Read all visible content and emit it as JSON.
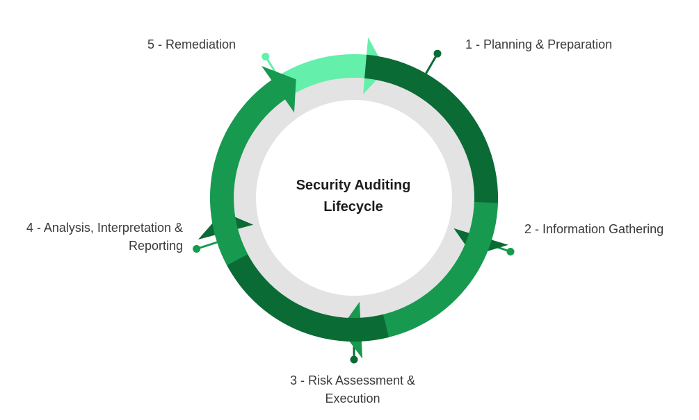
{
  "diagram": {
    "center_title": "Security Auditing\nLifecycle",
    "stages": [
      {
        "number": 1,
        "label": "1 - Planning & Preparation",
        "color": "#0b6b35"
      },
      {
        "number": 2,
        "label": "2 - Information Gathering",
        "color": "#17994f"
      },
      {
        "number": 3,
        "label": "3 - Risk Assessment &\nExecution",
        "color": "#0b6b35"
      },
      {
        "number": 4,
        "label": "4 - Analysis, Interpretation &\nReporting",
        "color": "#17994f"
      },
      {
        "number": 5,
        "label": "5 - Remediation",
        "color": "#64efab"
      }
    ],
    "colors": {
      "inner_ring": "#e3e3e3",
      "center_fill": "#ffffff",
      "label_text": "#3a3a3a",
      "title_text": "#1c1c1c"
    }
  }
}
